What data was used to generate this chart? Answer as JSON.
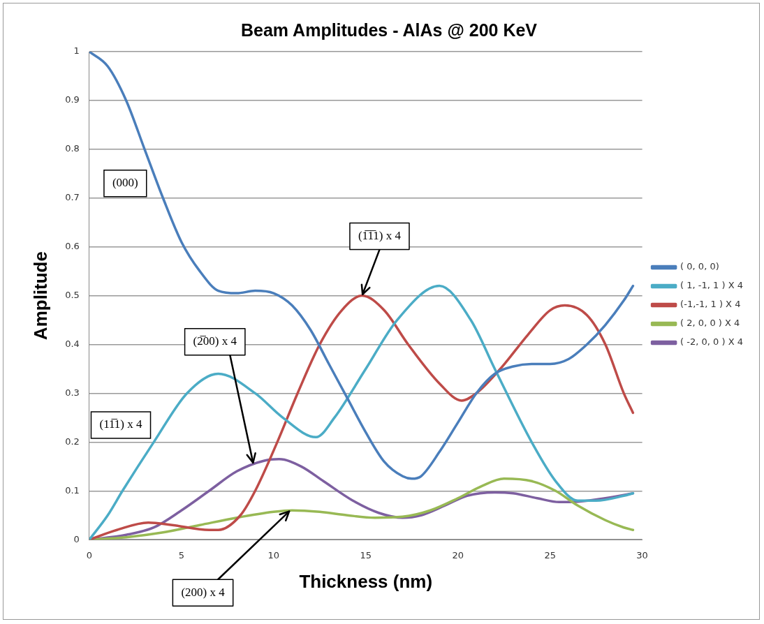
{
  "chart_data": {
    "type": "line",
    "title": "Beam Amplitudes - AlAs @ 200 KeV",
    "xlabel": "Thickness (nm)",
    "ylabel": "Amplitude",
    "xlim": [
      0,
      30
    ],
    "xticks": [
      0,
      5,
      10,
      15,
      20,
      25,
      30
    ],
    "ylim": [
      0,
      1
    ],
    "yticks": [
      0,
      0.1,
      0.2,
      0.3,
      0.4,
      0.5,
      0.6,
      0.7,
      0.8,
      0.9,
      1
    ],
    "grid": "y",
    "legend": "right",
    "marker": "none",
    "line_style": "solid",
    "series": [
      {
        "name": "( 0, 0, 0)",
        "color": "#4a7ebb",
        "x": [
          0,
          1,
          2,
          3,
          4,
          5,
          6,
          7,
          8,
          9,
          10,
          11,
          12,
          13,
          14,
          15,
          16,
          17,
          17.5,
          18,
          19,
          20,
          21,
          22,
          23,
          24,
          25,
          26,
          27,
          28,
          29,
          29.5
        ],
        "values": [
          1,
          0.97,
          0.9,
          0.8,
          0.7,
          0.61,
          0.55,
          0.51,
          0.505,
          0.51,
          0.505,
          0.48,
          0.43,
          0.36,
          0.29,
          0.22,
          0.16,
          0.13,
          0.125,
          0.13,
          0.18,
          0.24,
          0.3,
          0.34,
          0.355,
          0.36,
          0.36,
          0.37,
          0.4,
          0.44,
          0.49,
          0.52
        ]
      },
      {
        "name": "( 1, -1, 1 ) X 4",
        "color": "#4bacc6",
        "x": [
          0,
          1,
          1.8,
          3.5,
          5.3,
          7,
          9,
          10.5,
          12.3,
          13.3,
          15,
          16.7,
          19,
          20.7,
          22,
          24,
          25.3,
          26.5,
          27.5,
          29,
          29.5
        ],
        "values": [
          0,
          0.05,
          0.1,
          0.2,
          0.3,
          0.34,
          0.3,
          0.25,
          0.21,
          0.25,
          0.35,
          0.45,
          0.52,
          0.45,
          0.35,
          0.2,
          0.12,
          0.08,
          0.08,
          0.09,
          0.095
        ]
      },
      {
        "name": "(-1,-1, 1 ) X 4",
        "color": "#be4b48",
        "x": [
          0,
          1.5,
          3.2,
          4.5,
          6.5,
          7,
          8.2,
          9,
          10.2,
          11.3,
          12.5,
          13.7,
          14.8,
          16,
          17.3,
          19,
          20.2,
          21,
          22.3,
          23.8,
          25,
          25.8,
          27,
          28,
          29,
          29.5
        ],
        "values": [
          0,
          0.02,
          0.035,
          0.03,
          0.02,
          0.02,
          0.05,
          0.1,
          0.2,
          0.3,
          0.4,
          0.47,
          0.5,
          0.47,
          0.4,
          0.32,
          0.285,
          0.3,
          0.35,
          0.42,
          0.47,
          0.48,
          0.46,
          0.4,
          0.3,
          0.26
        ]
      },
      {
        "name": "( 2, 0, 0 ) X 4",
        "color": "#98b954",
        "x": [
          0,
          2,
          4,
          6,
          8,
          10,
          11,
          12.5,
          14,
          15.5,
          17,
          18.5,
          20,
          21.3,
          22.5,
          24,
          25.3,
          26.5,
          28,
          29,
          29.5
        ],
        "values": [
          0,
          0.005,
          0.015,
          0.03,
          0.045,
          0.057,
          0.06,
          0.057,
          0.05,
          0.045,
          0.047,
          0.06,
          0.085,
          0.11,
          0.125,
          0.12,
          0.1,
          0.07,
          0.04,
          0.025,
          0.02
        ]
      },
      {
        "name": "( -2, 0, 0 ) X 4",
        "color": "#7d5fa0",
        "x": [
          0,
          2,
          3.5,
          5,
          6.5,
          8,
          9.5,
          10.3,
          11.5,
          12.7,
          14.3,
          15.7,
          17,
          18,
          19.3,
          20.5,
          22,
          23,
          24.3,
          25.5,
          26.5,
          28,
          29.5
        ],
        "values": [
          0,
          0.01,
          0.025,
          0.06,
          0.1,
          0.14,
          0.162,
          0.165,
          0.15,
          0.12,
          0.08,
          0.055,
          0.045,
          0.05,
          0.07,
          0.09,
          0.097,
          0.095,
          0.085,
          0.077,
          0.078,
          0.085,
          0.095
        ]
      }
    ],
    "annotations": [
      "(000)",
      {
        "text": "(1̅1̅1) x 4",
        "x": 14.8,
        "y": 0.5
      },
      {
        "text": "(2̅00) x 4",
        "x": 8.9,
        "y": 0.155
      },
      "(11̅1) x 4",
      {
        "text": "(200) x 4",
        "x": 10.9,
        "y": 0.06
      }
    ]
  }
}
